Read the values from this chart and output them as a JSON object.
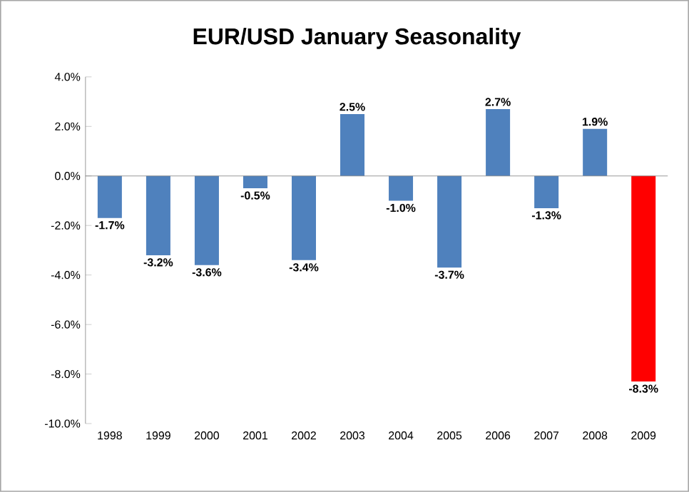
{
  "chart_data": {
    "type": "bar",
    "title": "EUR/USD January Seasonality",
    "categories": [
      "1998",
      "1999",
      "2000",
      "2001",
      "2002",
      "2003",
      "2004",
      "2005",
      "2006",
      "2007",
      "2008",
      "2009"
    ],
    "values": [
      -1.7,
      -3.2,
      -3.6,
      -0.5,
      -3.4,
      2.5,
      -1.0,
      -3.7,
      2.7,
      -1.3,
      1.9,
      -8.3
    ],
    "value_labels": [
      "-1.7%",
      "-3.2%",
      "-3.6%",
      "-0.5%",
      "-3.4%",
      "2.5%",
      "-1.0%",
      "-3.7%",
      "2.7%",
      "-1.3%",
      "1.9%",
      "-8.3%"
    ],
    "colors": [
      "#4f81bd",
      "#4f81bd",
      "#4f81bd",
      "#4f81bd",
      "#4f81bd",
      "#4f81bd",
      "#4f81bd",
      "#4f81bd",
      "#4f81bd",
      "#4f81bd",
      "#4f81bd",
      "#ff0000"
    ],
    "ylim": [
      -10,
      4
    ],
    "yticks": [
      {
        "value": -10,
        "label": "-10.0%"
      },
      {
        "value": -8,
        "label": "-8.0%"
      },
      {
        "value": -6,
        "label": "-6.0%"
      },
      {
        "value": -4,
        "label": "-4.0%"
      },
      {
        "value": -2,
        "label": "-2.0%"
      },
      {
        "value": 0,
        "label": "0.0%"
      },
      {
        "value": 2,
        "label": "2.0%"
      },
      {
        "value": 4,
        "label": "4.0%"
      }
    ],
    "orientation": "vertical"
  }
}
